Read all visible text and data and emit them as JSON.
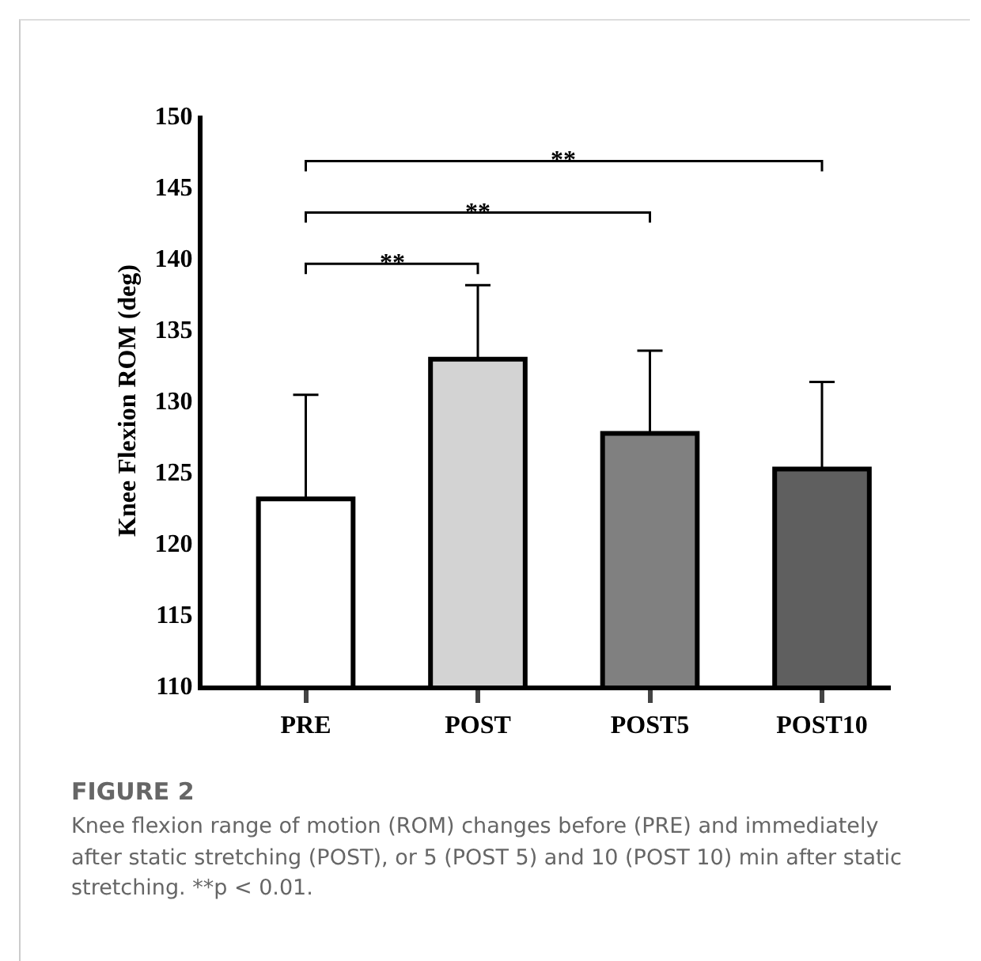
{
  "chart_data": {
    "type": "bar",
    "ylabel": "Knee Flexion ROM (deg)",
    "categories": [
      "PRE",
      "POST",
      "POST5",
      "POST10"
    ],
    "values": [
      123.1,
      132.9,
      127.7,
      125.2
    ],
    "colors": [
      "#ffffff",
      "#d3d3d3",
      "#808080",
      "#5f5f5f"
    ],
    "errors": [
      [
        123.1,
        130.4
      ],
      [
        132.9,
        138.1
      ],
      [
        127.7,
        133.5
      ],
      [
        125.2,
        131.3
      ]
    ],
    "ylim": [
      110,
      150
    ],
    "yticks": [
      110,
      115,
      120,
      125,
      130,
      135,
      140,
      145,
      150
    ],
    "grid": false,
    "annotations": [
      "**",
      "**",
      "**",
      "FIGURE 2",
      "Knee flexion range of motion (ROM) changes before (PRE) and immediately after static stretching (POST), or 5 (POST 5) and 10 (POST 10) min after static stretching. **p < 0.01."
    ]
  }
}
